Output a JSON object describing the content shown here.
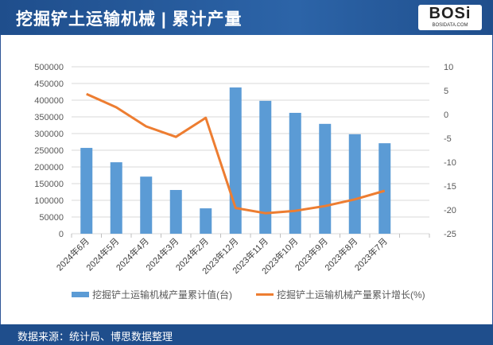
{
  "header": {
    "title": "挖掘铲土运输机械 | 累计产量",
    "logo_text": "BOSi",
    "logo_sub": "BOSIDATA.COM"
  },
  "footer": {
    "source": "数据来源：统计局、博思数据整理"
  },
  "chart_data": {
    "type": "bar+line",
    "categories": [
      "2024年6月",
      "2024年5月",
      "2024年4月",
      "2024年3月",
      "2024年2月",
      "2023年12月",
      "2023年11月",
      "2023年10月",
      "2023年9月",
      "2023年8月",
      "2023年7月"
    ],
    "series": [
      {
        "name": "挖掘铲土运输机械产量累计值(台)",
        "type": "bar",
        "axis": "left",
        "color": "#5b9bd5",
        "values": [
          257000,
          214000,
          171000,
          131000,
          76000,
          438000,
          398000,
          362000,
          329000,
          298000,
          271000
        ]
      },
      {
        "name": "挖掘铲土运输机械产量累计增长(%)",
        "type": "line",
        "axis": "right",
        "color": "#ed7d31",
        "values": [
          4.3,
          1.5,
          -2.5,
          -4.7,
          -0.7,
          -19.6,
          -20.7,
          -20.2,
          -19.2,
          -17.8,
          -16.0
        ]
      }
    ],
    "yleft": {
      "range": [
        0,
        500000
      ],
      "ticks": [
        0,
        50000,
        100000,
        150000,
        200000,
        250000,
        300000,
        350000,
        400000,
        450000,
        500000
      ]
    },
    "yright": {
      "range": [
        -25,
        10
      ],
      "ticks": [
        -25,
        -20,
        -15,
        -10,
        -5,
        0,
        5,
        10
      ]
    },
    "grid": true,
    "legend": "bottom"
  }
}
